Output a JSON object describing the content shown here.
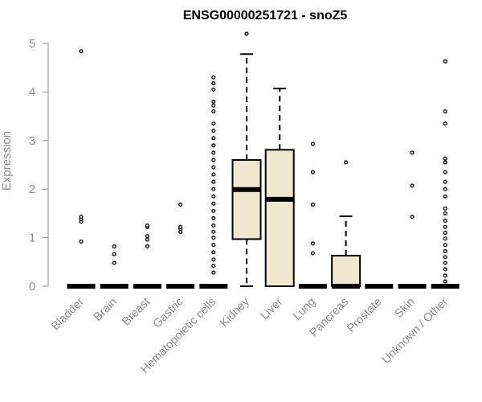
{
  "chart_data": {
    "type": "box",
    "title": "ENSG00000251721 - snoZ5",
    "xlabel": "",
    "ylabel": "Expression",
    "ylim": [
      0,
      5.2
    ],
    "y_ticks": [
      0,
      1,
      2,
      3,
      4,
      5
    ],
    "grid": false,
    "legend": "none",
    "box_fill": "#efe8cf",
    "outline_color": "#000000",
    "axis_color": "#8a8a8a",
    "categories": [
      "Bladder",
      "Brain",
      "Breast",
      "Gastric",
      "Hematopoietic cells",
      "Kidney",
      "Liver",
      "Lung",
      "Pancreas",
      "Prostate",
      "Skin",
      "Unknown / Other"
    ],
    "boxes": [
      {
        "category": "Bladder",
        "min": 0,
        "q1": 0,
        "median": 0,
        "q3": 0,
        "max": 0,
        "outliers": [
          0.92,
          1.33,
          1.38,
          1.43,
          4.84
        ]
      },
      {
        "category": "Brain",
        "min": 0,
        "q1": 0,
        "median": 0,
        "q3": 0,
        "max": 0,
        "outliers": [
          0.48,
          0.66,
          0.82
        ]
      },
      {
        "category": "Breast",
        "min": 0,
        "q1": 0,
        "median": 0,
        "q3": 0,
        "max": 0,
        "outliers": [
          0.82,
          0.96,
          1.03,
          1.22,
          1.25
        ]
      },
      {
        "category": "Gastric",
        "min": 0,
        "q1": 0,
        "median": 0,
        "q3": 0,
        "max": 0,
        "outliers": [
          1.12,
          1.18,
          1.22,
          1.68
        ]
      },
      {
        "category": "Hematopoietic cells",
        "min": 0,
        "q1": 0,
        "median": 0,
        "q3": 0,
        "max": 0,
        "outliers": [
          0.28,
          0.42,
          0.55,
          0.7,
          0.85,
          1.0,
          1.12,
          1.25,
          1.4,
          1.55,
          1.7,
          1.85,
          2.0,
          2.15,
          2.3,
          2.45,
          2.6,
          2.75,
          2.9,
          3.05,
          3.2,
          3.35,
          3.6,
          3.72,
          3.8,
          4.05,
          4.18,
          4.3
        ]
      },
      {
        "category": "Kidney",
        "min": 0,
        "q1": 0.97,
        "median": 1.99,
        "q3": 2.6,
        "max": 4.78,
        "outliers": [
          5.2
        ]
      },
      {
        "category": "Liver",
        "min": 0,
        "q1": 0,
        "median": 1.79,
        "q3": 2.81,
        "max": 4.07,
        "outliers": []
      },
      {
        "category": "Lung",
        "min": 0,
        "q1": 0,
        "median": 0,
        "q3": 0,
        "max": 0,
        "outliers": [
          0.68,
          0.88,
          1.68,
          2.35,
          2.93
        ]
      },
      {
        "category": "Pancreas",
        "min": 0,
        "q1": 0,
        "median": 0,
        "q3": 0.63,
        "max": 1.44,
        "outliers": [
          2.55
        ]
      },
      {
        "category": "Prostate",
        "min": 0,
        "q1": 0,
        "median": 0,
        "q3": 0,
        "max": 0,
        "outliers": []
      },
      {
        "category": "Skin",
        "min": 0,
        "q1": 0,
        "median": 0,
        "q3": 0,
        "max": 0,
        "outliers": [
          1.43,
          2.07,
          2.75
        ]
      },
      {
        "category": "Unknown / Other",
        "min": 0,
        "q1": 0,
        "median": 0,
        "q3": 0,
        "max": 0,
        "outliers": [
          0.1,
          0.22,
          0.35,
          0.48,
          0.6,
          0.72,
          0.85,
          0.98,
          1.1,
          1.22,
          1.35,
          1.5,
          1.6,
          1.85,
          2.0,
          2.15,
          2.35,
          2.55,
          2.63,
          3.35,
          3.6,
          4.63
        ]
      }
    ]
  }
}
